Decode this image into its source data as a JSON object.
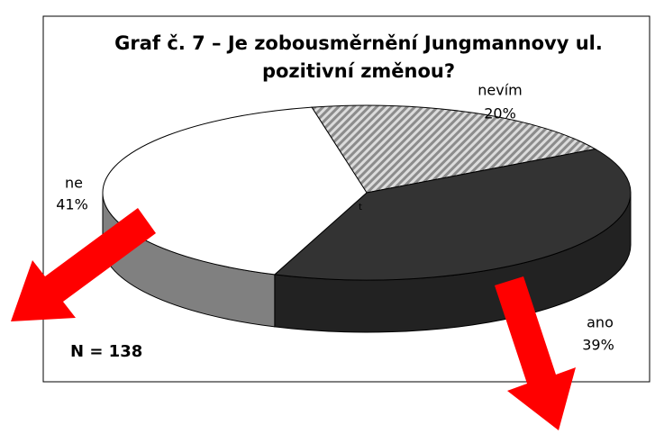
{
  "chart_data": {
    "type": "pie",
    "title": [
      "Graf č. 7 – Je zobousměrnění Jungmannovy ul.",
      "pozitivní změnou?"
    ],
    "categories": [
      "nevím",
      "ano",
      "ne"
    ],
    "values": [
      20,
      39,
      41
    ],
    "value_labels": [
      "20%",
      "39%",
      "41%"
    ],
    "colors": [
      "#a8a8a8",
      "#333333",
      "#ffffff"
    ],
    "side_colors": [
      "#8a8a8a",
      "#222222",
      "#808080"
    ],
    "hatched": [
      true,
      false,
      false
    ],
    "annotations": [
      "N = 138",
      "t"
    ]
  }
}
